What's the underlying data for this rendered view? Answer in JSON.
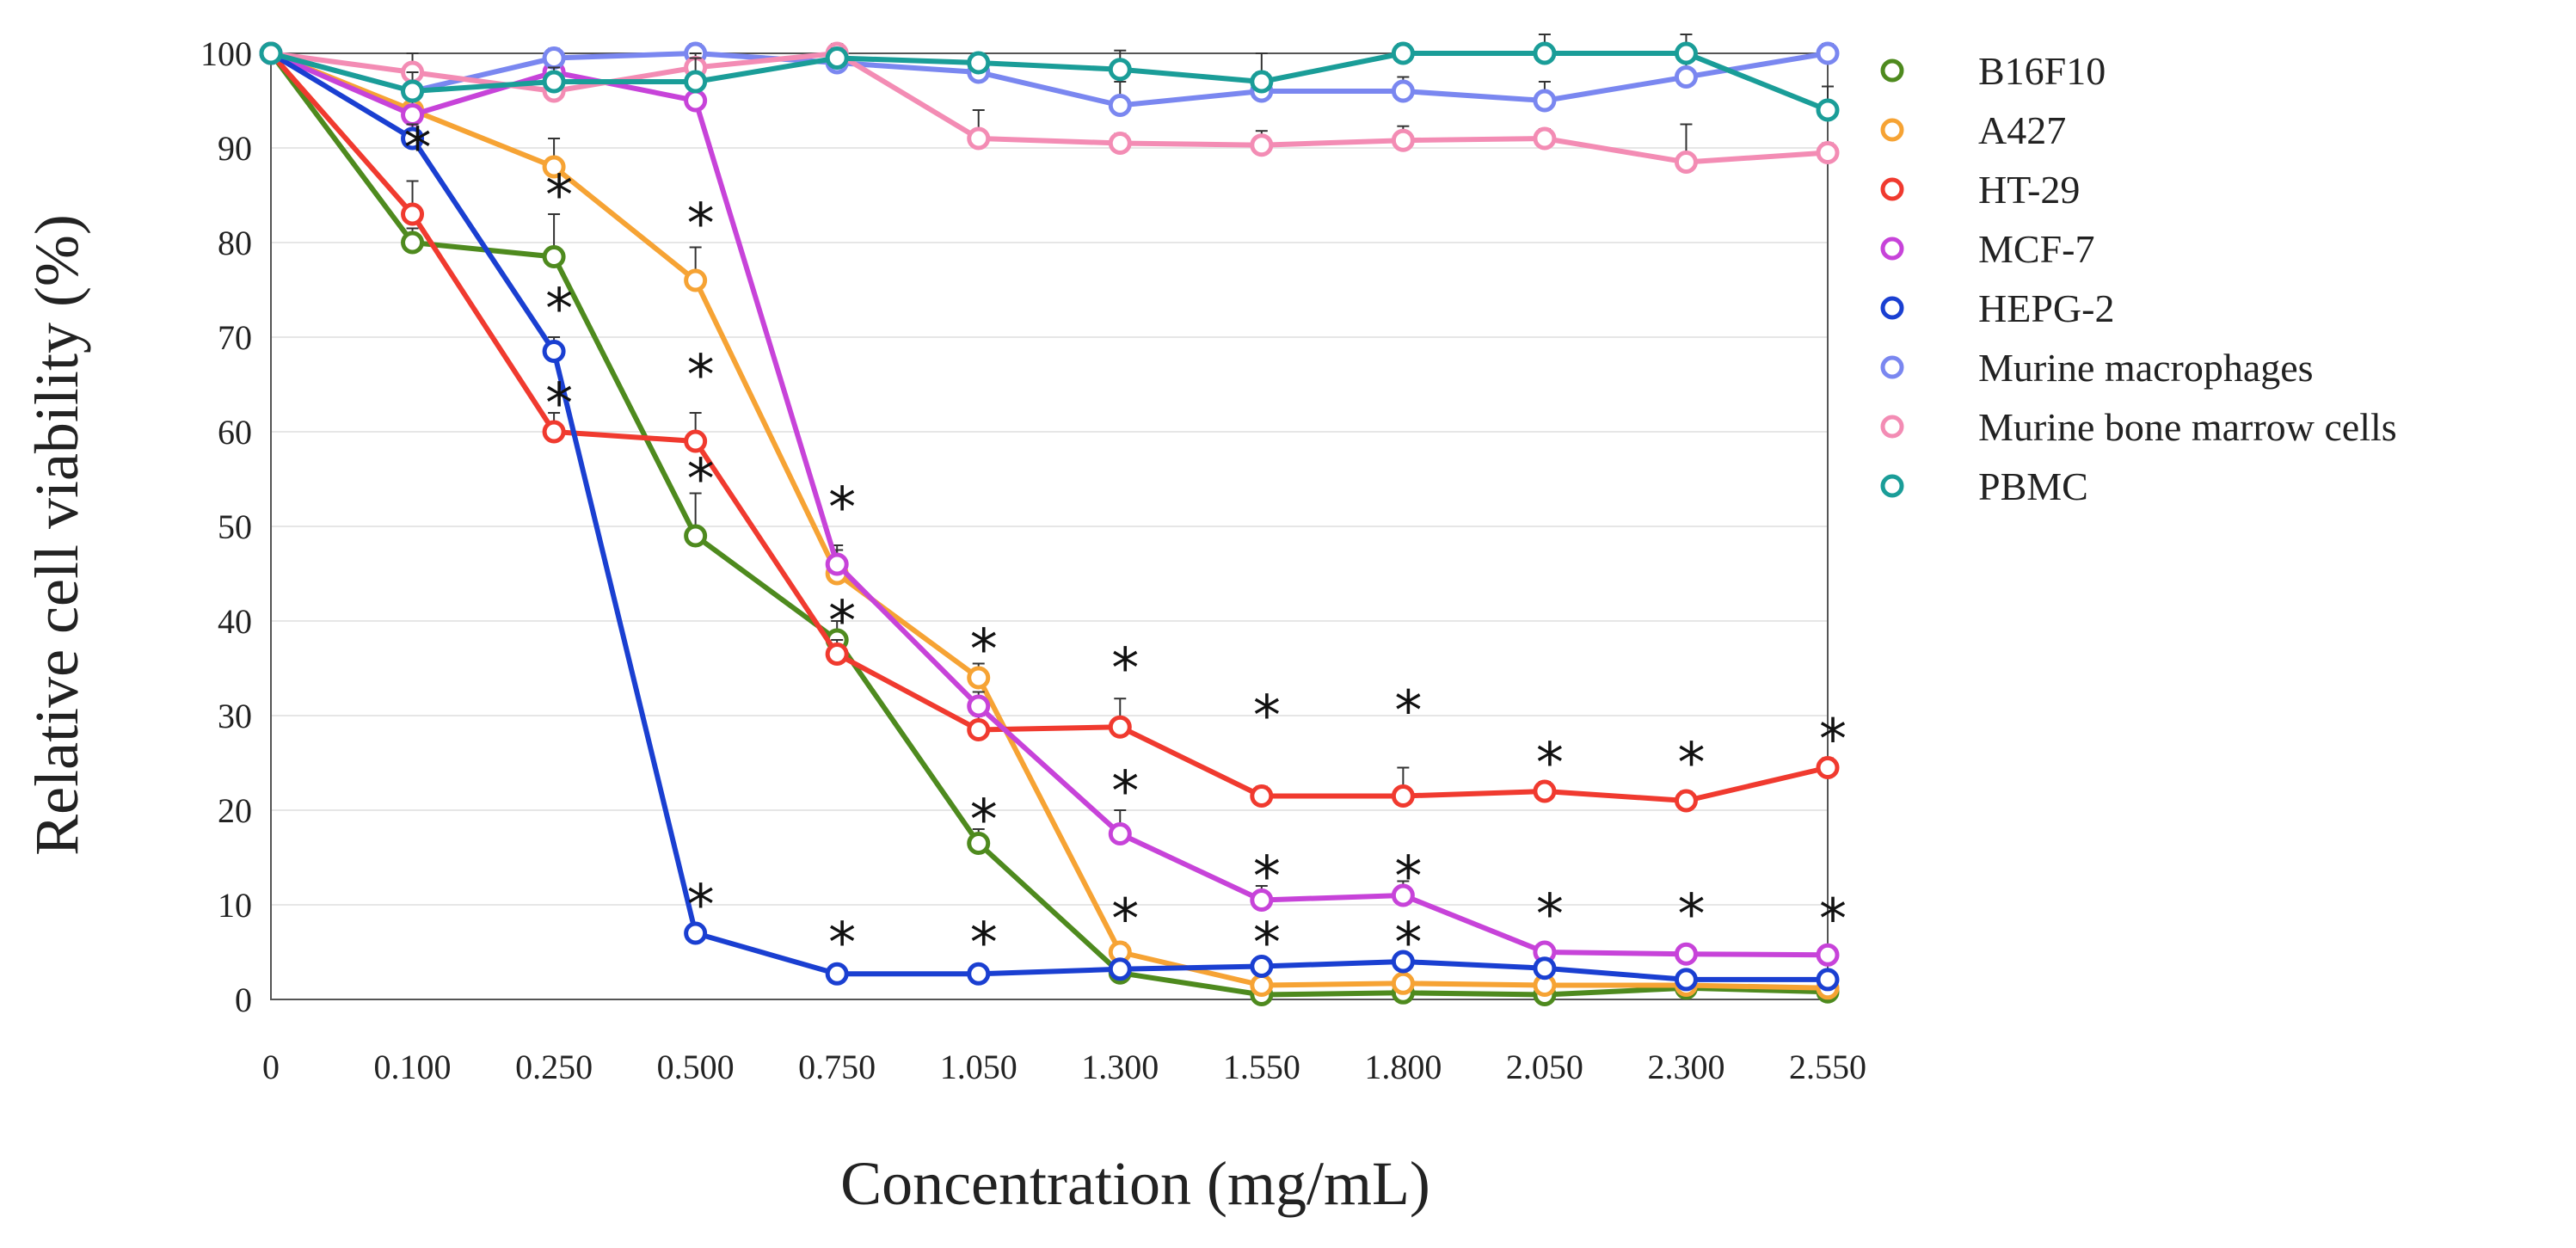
{
  "chart_data": {
    "type": "line",
    "title": "",
    "xlabel": "Concentration (mg/mL)",
    "ylabel": "Relative cell viability (%)",
    "categories": [
      "0",
      "0.100",
      "0.250",
      "0.500",
      "0.750",
      "1.050",
      "1.300",
      "1.550",
      "1.800",
      "2.050",
      "2.300",
      "2.550"
    ],
    "yticks": [
      "0",
      "10",
      "20",
      "30",
      "40",
      "50",
      "60",
      "70",
      "80",
      "90",
      "100"
    ],
    "ylim": [
      0,
      100
    ],
    "grid": true,
    "legend_position": "right",
    "series": [
      {
        "name": "B16F10",
        "color": "#4e8a1e",
        "values": [
          100,
          80,
          78.5,
          49,
          38,
          16.5,
          2.8,
          0.5,
          0.7,
          0.5,
          1.2,
          0.8
        ],
        "errors": [
          0,
          1.5,
          4.5,
          4.5,
          2,
          1.5,
          1,
          0.5,
          0.5,
          0.5,
          0.5,
          0.5
        ]
      },
      {
        "name": "A427",
        "color": "#f6a334",
        "values": [
          100,
          94,
          88,
          76,
          45,
          34,
          5,
          1.5,
          1.7,
          1.5,
          1.5,
          1.2
        ],
        "errors": [
          0,
          1.5,
          3,
          3.5,
          3,
          1.5,
          1,
          0.5,
          0.5,
          0.5,
          0.5,
          0.5
        ]
      },
      {
        "name": "HT-29",
        "color": "#f03a2f",
        "values": [
          100,
          83,
          60,
          59,
          36.5,
          28.5,
          28.8,
          21.5,
          21.5,
          22,
          21,
          24.5
        ],
        "errors": [
          0,
          3.5,
          2,
          3,
          1.5,
          1.5,
          3,
          1,
          3,
          1,
          1,
          1
        ]
      },
      {
        "name": "MCF-7",
        "color": "#c743d9",
        "values": [
          100,
          93.5,
          98,
          95,
          46,
          31,
          17.5,
          10.5,
          11,
          5,
          4.8,
          4.7
        ],
        "errors": [
          0,
          2,
          1.5,
          2,
          1.5,
          1.5,
          2.5,
          1.5,
          1.5,
          0.5,
          0.5,
          0.5
        ]
      },
      {
        "name": "HEPG-2",
        "color": "#1a3fd1",
        "values": [
          100,
          91,
          68.5,
          7,
          2.7,
          2.7,
          3.2,
          3.5,
          4,
          3.3,
          2.1,
          2.1
        ],
        "errors": [
          0,
          1.5,
          1.5,
          0.5,
          0.5,
          0.5,
          0.5,
          0.5,
          0.5,
          0.5,
          0.5,
          0.5
        ]
      },
      {
        "name": "Murine macrophages",
        "color": "#7a87f0",
        "values": [
          100,
          96,
          99.5,
          100,
          99,
          98,
          94.5,
          96,
          96,
          95,
          97.5,
          100
        ],
        "errors": [
          0,
          2,
          1,
          1,
          1,
          1.5,
          2.5,
          2,
          1.5,
          2,
          2,
          1
        ]
      },
      {
        "name": "Murine bone marrow cells",
        "color": "#f38cb4",
        "values": [
          100,
          98,
          96,
          98.5,
          100,
          91,
          90.5,
          90.3,
          90.8,
          91,
          88.5,
          89.5
        ],
        "errors": [
          0,
          2,
          1.5,
          1.5,
          1,
          3,
          1,
          1.5,
          1.5,
          1,
          4,
          1
        ]
      },
      {
        "name": "PBMC",
        "color": "#1a9d98",
        "values": [
          100,
          96,
          97,
          97,
          99.5,
          99,
          98.3,
          97,
          100,
          100,
          100,
          94
        ],
        "errors": [
          0,
          2,
          1.5,
          2.5,
          1,
          1,
          2,
          3,
          1,
          3.5,
          2.5,
          2.5
        ]
      }
    ],
    "annotations": {
      "marker": "*",
      "positions": [
        {
          "x": "0.100",
          "y": 90
        },
        {
          "x": "0.250",
          "y": 85
        },
        {
          "x": "0.250",
          "y": 73
        },
        {
          "x": "0.250",
          "y": 63
        },
        {
          "x": "0.500",
          "y": 82
        },
        {
          "x": "0.500",
          "y": 66
        },
        {
          "x": "0.500",
          "y": 55
        },
        {
          "x": "0.500",
          "y": 10
        },
        {
          "x": "0.750",
          "y": 52
        },
        {
          "x": "0.750",
          "y": 40
        },
        {
          "x": "0.750",
          "y": 6
        },
        {
          "x": "1.050",
          "y": 37
        },
        {
          "x": "1.050",
          "y": 19
        },
        {
          "x": "1.050",
          "y": 6
        },
        {
          "x": "1.300",
          "y": 35
        },
        {
          "x": "1.300",
          "y": 22
        },
        {
          "x": "1.300",
          "y": 8.5
        },
        {
          "x": "1.550",
          "y": 30
        },
        {
          "x": "1.550",
          "y": 13
        },
        {
          "x": "1.550",
          "y": 6
        },
        {
          "x": "1.800",
          "y": 30.5
        },
        {
          "x": "1.800",
          "y": 13
        },
        {
          "x": "1.800",
          "y": 6
        },
        {
          "x": "2.050",
          "y": 25
        },
        {
          "x": "2.050",
          "y": 9
        },
        {
          "x": "2.300",
          "y": 25
        },
        {
          "x": "2.300",
          "y": 9
        },
        {
          "x": "2.550",
          "y": 27.5
        },
        {
          "x": "2.550",
          "y": 8.5
        }
      ]
    }
  }
}
